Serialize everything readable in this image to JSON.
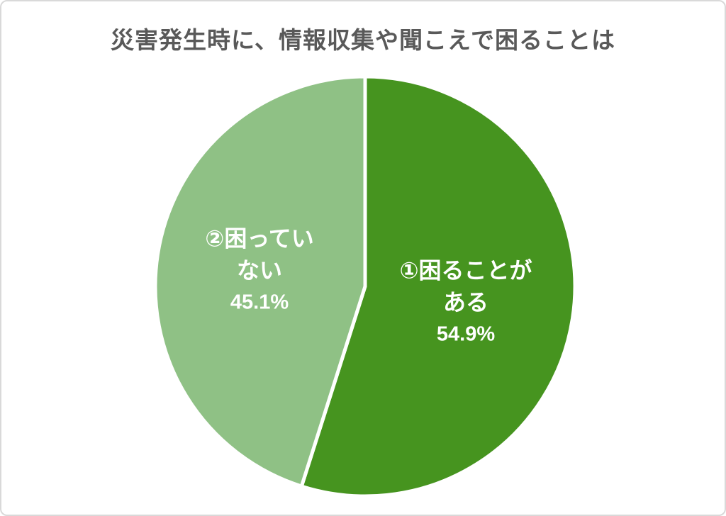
{
  "title": "災害発生時に、情報収集や聞こえで困ることは",
  "chart_data": {
    "type": "pie",
    "title": "災害発生時に、情報収集や聞こえで困ることは",
    "title_color": "#595959",
    "start_angle_deg": 0,
    "direction": "clockwise",
    "slice_gap_color": "#ffffff",
    "legend": "none",
    "labels_position": "inside",
    "label_text_color": "#ffffff",
    "slices": [
      {
        "label": "①困ることがある",
        "label_lines": [
          "①困ることが",
          "ある"
        ],
        "value": 54.9,
        "pct_text": "54.9%",
        "color": "#46941f"
      },
      {
        "label": "②困っていない",
        "label_lines": [
          "②困ってい",
          "ない"
        ],
        "value": 45.1,
        "pct_text": "45.1%",
        "color": "#8fc185"
      }
    ]
  }
}
